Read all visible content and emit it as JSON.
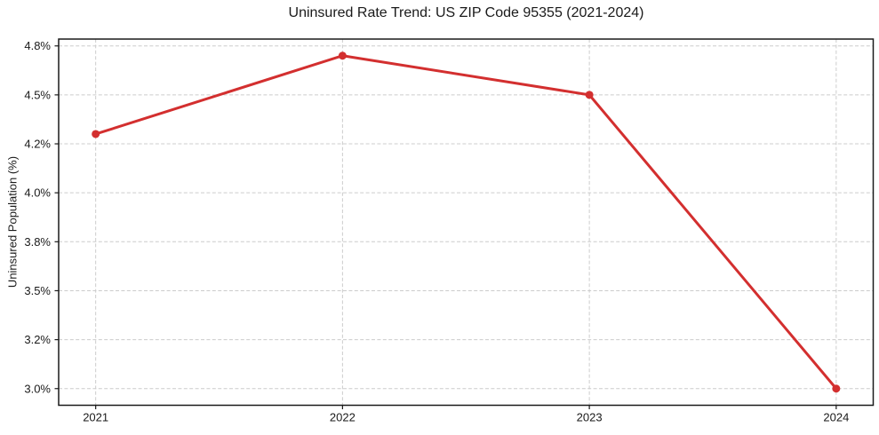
{
  "chart_data": {
    "type": "line",
    "title": "Uninsured Rate Trend: US ZIP Code 95355 (2021-2024)",
    "xlabel": "",
    "ylabel": "Uninsured Population (%)",
    "x": [
      2021,
      2022,
      2023,
      2024
    ],
    "values": [
      4.3,
      4.7,
      4.5,
      3.0
    ],
    "xlim": [
      2020.85,
      2024.15
    ],
    "ylim": [
      2.915,
      4.785
    ],
    "xticks": [
      {
        "value": 2021,
        "label": "2021"
      },
      {
        "value": 2022,
        "label": "2022"
      },
      {
        "value": 2023,
        "label": "2023"
      },
      {
        "value": 2024,
        "label": "2024"
      }
    ],
    "yticks": [
      {
        "value": 3.0,
        "label": "3.0%"
      },
      {
        "value": 3.25,
        "label": "3.2%"
      },
      {
        "value": 3.5,
        "label": "3.5%"
      },
      {
        "value": 3.75,
        "label": "3.8%"
      },
      {
        "value": 4.0,
        "label": "4.0%"
      },
      {
        "value": 4.25,
        "label": "4.2%"
      },
      {
        "value": 4.5,
        "label": "4.5%"
      },
      {
        "value": 4.75,
        "label": "4.8%"
      }
    ],
    "grid": true,
    "grid_style": "dashed",
    "legend_position": "none",
    "line_color": "#d32f2f",
    "marker": "circle",
    "grid_color": "#cccccc",
    "axis_color": "#1a1a1a",
    "background": "#ffffff"
  }
}
